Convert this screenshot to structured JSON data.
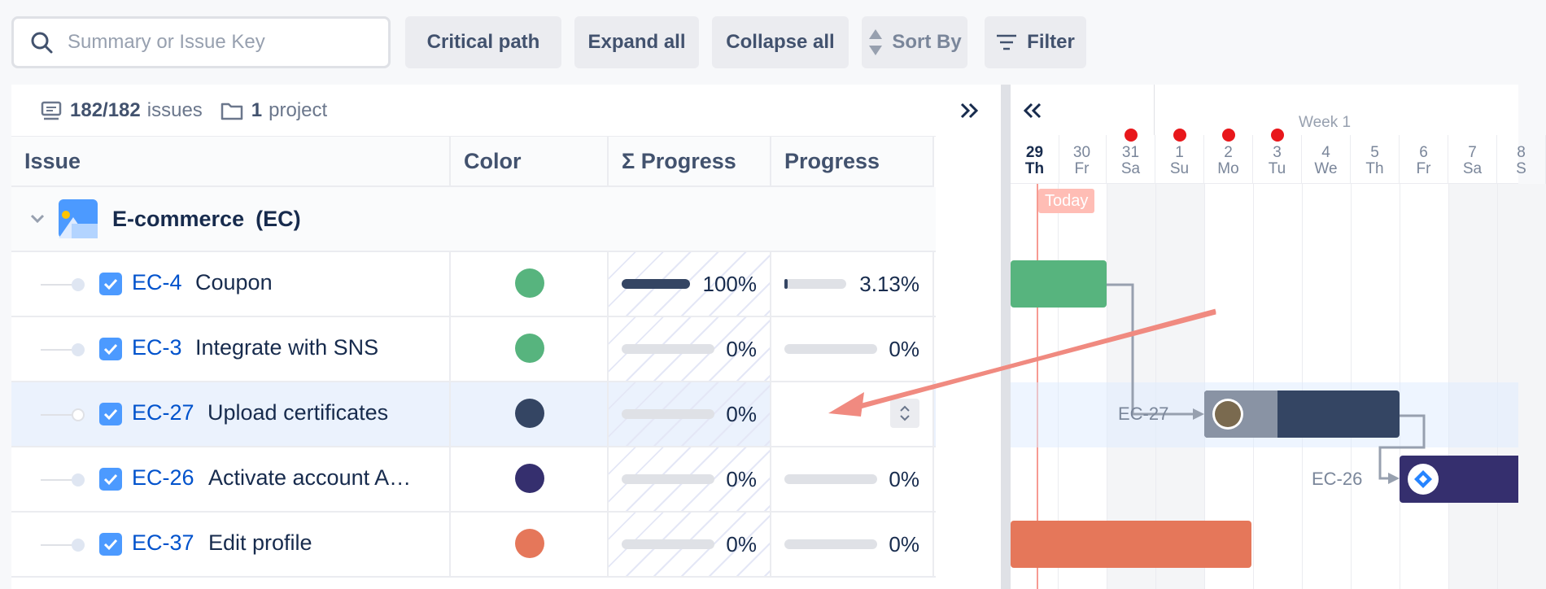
{
  "toolbar": {
    "search_placeholder": "Summary or Issue Key",
    "critical_path": "Critical path",
    "expand_all": "Expand all",
    "collapse_all": "Collapse all",
    "sort_by": "Sort By",
    "filter": "Filter"
  },
  "meta": {
    "issues_count": "182/182",
    "issues_label": "issues",
    "projects_count": "1",
    "projects_label": "project"
  },
  "columns": {
    "issue": "Issue",
    "color": "Color",
    "sum_progress": "Σ Progress",
    "progress": "Progress"
  },
  "group": {
    "name": "E-commerce",
    "key": "(EC)"
  },
  "rows": [
    {
      "key": "EC-4",
      "summary": "Coupon",
      "color": "#57b47e",
      "sum_progress": "100%",
      "sum_progress_value": 1.0,
      "progress": "3.13%",
      "progress_value": 0.0313
    },
    {
      "key": "EC-3",
      "summary": "Integrate with SNS",
      "color": "#57b47e",
      "sum_progress": "0%",
      "sum_progress_value": 0,
      "progress": "0%",
      "progress_value": 0
    },
    {
      "key": "EC-27",
      "summary": "Upload certificates",
      "color": "#344563",
      "sum_progress": "0%",
      "sum_progress_value": 0,
      "progress": "",
      "progress_value": 0
    },
    {
      "key": "EC-26",
      "summary": "Activate account A…",
      "color": "#352f6e",
      "sum_progress": "0%",
      "sum_progress_value": 0,
      "progress": "0%",
      "progress_value": 0
    },
    {
      "key": "EC-37",
      "summary": "Edit profile",
      "color": "#e5775a",
      "sum_progress": "0%",
      "sum_progress_value": 0,
      "progress": "0%",
      "progress_value": 0
    }
  ],
  "gantt": {
    "week_label": "Week 1",
    "today_label": "Today",
    "days": [
      {
        "num": "29",
        "dow": "Th"
      },
      {
        "num": "30",
        "dow": "Fr"
      },
      {
        "num": "31",
        "dow": "Sa"
      },
      {
        "num": "1",
        "dow": "Su"
      },
      {
        "num": "2",
        "dow": "Mo"
      },
      {
        "num": "3",
        "dow": "Tu"
      },
      {
        "num": "4",
        "dow": "We"
      },
      {
        "num": "5",
        "dow": "Th"
      },
      {
        "num": "6",
        "dow": "Fr"
      },
      {
        "num": "7",
        "dow": "Sa"
      },
      {
        "num": "8",
        "dow": "S"
      }
    ],
    "dep_labels": {
      "ec27": "EC-27",
      "ec26": "EC-26"
    }
  }
}
